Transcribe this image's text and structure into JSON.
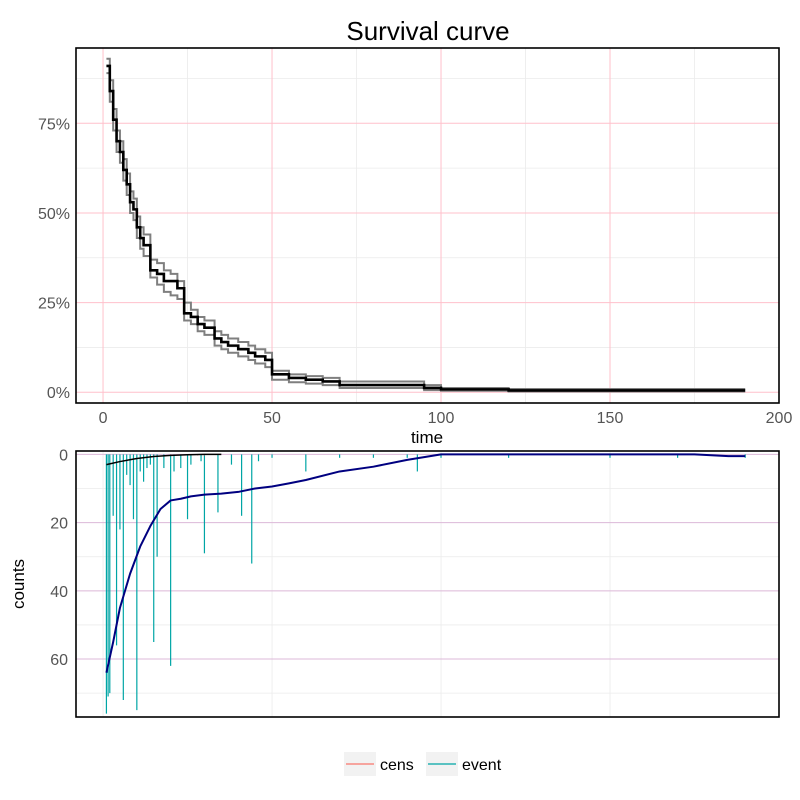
{
  "chart_data": [
    {
      "type": "line",
      "title": "Survival curve",
      "xlabel": "time",
      "ylabel": "",
      "xlim": [
        -8,
        200
      ],
      "ylim": [
        -0.03,
        0.96
      ],
      "xticks": [
        0,
        50,
        100,
        150,
        200
      ],
      "xtick_labels": [
        "0",
        "50",
        "100",
        "150",
        "200"
      ],
      "yticks": [
        0,
        0.25,
        0.5,
        0.75
      ],
      "ytick_labels": [
        "0%",
        "25%",
        "50%",
        "75%"
      ],
      "grid": true,
      "series": [
        {
          "role": "estimate",
          "color": "#000000",
          "x": [
            1,
            2,
            3,
            4,
            5,
            6,
            7,
            8,
            9,
            10,
            11,
            12,
            14,
            16,
            18,
            20,
            22,
            24,
            26,
            28,
            30,
            33,
            35,
            37,
            40,
            43,
            45,
            48,
            50,
            55,
            60,
            65,
            70,
            80,
            90,
            95,
            100,
            120,
            150,
            190
          ],
          "y": [
            0.91,
            0.84,
            0.76,
            0.7,
            0.67,
            0.62,
            0.58,
            0.53,
            0.51,
            0.46,
            0.43,
            0.41,
            0.34,
            0.33,
            0.31,
            0.31,
            0.29,
            0.22,
            0.21,
            0.19,
            0.18,
            0.15,
            0.14,
            0.13,
            0.12,
            0.11,
            0.1,
            0.09,
            0.05,
            0.04,
            0.035,
            0.03,
            0.02,
            0.02,
            0.02,
            0.012,
            0.008,
            0.005,
            0.005,
            0.005
          ]
        },
        {
          "role": "upper",
          "color": "#7f7f7f",
          "x": [
            1,
            2,
            3,
            4,
            5,
            6,
            7,
            8,
            9,
            10,
            11,
            12,
            14,
            16,
            18,
            20,
            22,
            24,
            26,
            28,
            30,
            33,
            35,
            37,
            40,
            43,
            45,
            48,
            50,
            55,
            60,
            65,
            70,
            80,
            90,
            95,
            100,
            120,
            150,
            190
          ],
          "y": [
            0.93,
            0.87,
            0.79,
            0.73,
            0.7,
            0.65,
            0.61,
            0.56,
            0.54,
            0.49,
            0.46,
            0.44,
            0.37,
            0.36,
            0.34,
            0.33,
            0.31,
            0.25,
            0.23,
            0.21,
            0.2,
            0.17,
            0.16,
            0.15,
            0.14,
            0.13,
            0.12,
            0.11,
            0.06,
            0.05,
            0.045,
            0.04,
            0.03,
            0.03,
            0.03,
            0.02,
            0.012,
            0.009,
            0.009,
            0.009
          ]
        },
        {
          "role": "lower",
          "color": "#7f7f7f",
          "x": [
            1,
            2,
            3,
            4,
            5,
            6,
            7,
            8,
            9,
            10,
            11,
            12,
            14,
            16,
            18,
            20,
            22,
            24,
            26,
            28,
            30,
            33,
            35,
            37,
            40,
            43,
            45,
            48,
            50,
            55,
            60,
            65,
            70,
            80,
            90,
            95,
            100,
            120,
            150,
            190
          ],
          "y": [
            0.89,
            0.81,
            0.73,
            0.67,
            0.64,
            0.59,
            0.55,
            0.5,
            0.48,
            0.43,
            0.4,
            0.38,
            0.32,
            0.3,
            0.28,
            0.27,
            0.26,
            0.2,
            0.19,
            0.17,
            0.16,
            0.13,
            0.12,
            0.11,
            0.1,
            0.09,
            0.08,
            0.07,
            0.035,
            0.028,
            0.024,
            0.02,
            0.012,
            0.012,
            0.012,
            0.006,
            0.004,
            0.002,
            0.002,
            0.002
          ]
        }
      ]
    },
    {
      "type": "bar",
      "xlabel": "",
      "ylabel": "counts",
      "xlim": [
        -8,
        200
      ],
      "ylim": [
        77,
        -1
      ],
      "yticks": [
        0,
        20,
        40,
        60
      ],
      "ytick_labels": [
        "0",
        "20",
        "40",
        "60"
      ],
      "grid": true,
      "legend": {
        "placement": "bottom",
        "entries": [
          {
            "label": "cens",
            "color": "#f8766d"
          },
          {
            "label": "event",
            "color": "#00a5a5"
          }
        ]
      },
      "series": [
        {
          "name": "event",
          "color": "#00a5a5",
          "x": [
            1,
            1.5,
            2,
            3,
            4,
            5,
            6,
            7,
            8,
            9,
            10,
            11,
            12,
            13,
            14,
            15,
            16,
            18,
            20,
            21,
            23,
            25,
            26,
            29,
            30,
            34,
            38,
            41,
            44,
            46,
            50,
            60,
            70,
            80,
            90,
            93,
            100,
            120,
            150,
            170,
            190
          ],
          "values": [
            76,
            71,
            70,
            18,
            56,
            22,
            72,
            6,
            9,
            19,
            75,
            5,
            8,
            4,
            3,
            55,
            30,
            4,
            62,
            5,
            4,
            19,
            3,
            2,
            29,
            17,
            3,
            18,
            32,
            2,
            1,
            5,
            1,
            1,
            1,
            5,
            1,
            1,
            1,
            1,
            1
          ]
        },
        {
          "name": "cens",
          "color": "#f8766d",
          "x": [
            20,
            22,
            24,
            26,
            28,
            30
          ],
          "values": [
            0.3,
            0.3,
            0.3,
            0.3,
            0.3,
            0.3
          ]
        }
      ],
      "smooth_event": {
        "color": "#000080",
        "x": [
          1,
          3,
          5,
          8,
          11,
          14,
          17,
          20,
          23,
          26,
          30,
          35,
          40,
          45,
          50,
          55,
          60,
          70,
          80,
          90,
          100,
          110,
          120,
          140,
          160,
          175,
          185,
          190
        ],
        "y": [
          64,
          55,
          45,
          35,
          27,
          21,
          16,
          13.5,
          13,
          12.3,
          11.8,
          11.5,
          11,
          10,
          9.4,
          8.5,
          7.5,
          5,
          3.6,
          1.6,
          0,
          0,
          0,
          0,
          0,
          0,
          0.5,
          0.5
        ]
      },
      "smooth_cens": {
        "color": "#000000",
        "x": [
          1,
          5,
          10,
          15,
          20,
          25,
          30,
          35
        ],
        "y": [
          3,
          2.1,
          1.2,
          0.6,
          0.3,
          0.1,
          0,
          0
        ]
      }
    }
  ]
}
